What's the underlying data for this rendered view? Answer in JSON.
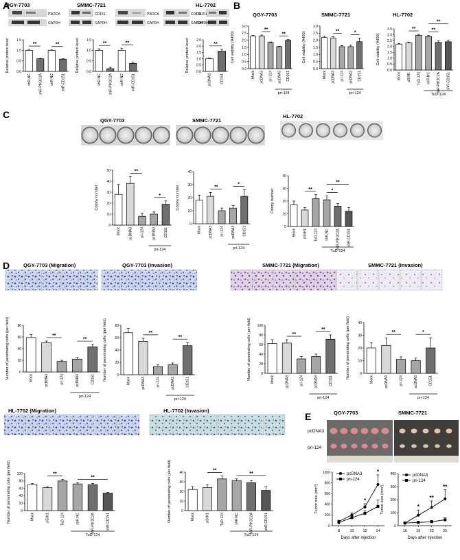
{
  "panel_labels": [
    "A",
    "B",
    "C",
    "D",
    "E"
  ],
  "blots": [
    {
      "title": "QGY-7703",
      "bands": [
        [
          "PIK3CA",
          "CD151"
        ],
        [
          "GAPDH",
          "GAPDH"
        ]
      ]
    },
    {
      "title": "SMMC-7721",
      "bands": [
        [
          "PIK3CA",
          "CD151"
        ],
        [
          "GAPDH",
          "GAPDH"
        ]
      ]
    },
    {
      "title": "HL-7702",
      "bands": [
        [
          "CD151"
        ],
        [
          "GAPDH"
        ]
      ]
    }
  ],
  "photos": {
    "c_titles": [
      "QGY-7703",
      "SMMC-7721",
      "HL-7702"
    ],
    "d_titles": [
      "QGY-7703 (Migration)",
      "QGY-7703 (Invasion)",
      "SMMC-7721 (Migration)",
      "SMMC-7721 (Invasion)",
      "HL-7702 (Migration)",
      "HL-7702 (Invasion)"
    ],
    "e_titles": [
      "QGY-7703",
      "SMMC-7721"
    ],
    "e_rows": [
      "pcDNA3",
      "pri-124"
    ]
  },
  "colors": {
    "white": "#ffffff",
    "light": "#d9d9d9",
    "mid": "#a6a6a6",
    "dark": "#6f6f6f",
    "darker": "#555555",
    "black": "#000000"
  },
  "chart_data": [
    {
      "id": "A1",
      "type": "bar",
      "title": "QGY-7703",
      "ylabel": "Relative protein level",
      "ylim": [
        0,
        1.5
      ],
      "yticks": [
        "0.0",
        "0.5",
        "1.0",
        "1.5"
      ],
      "categories": [
        "shR-NC",
        "shR-PIK3C2A",
        "shR-NC",
        "shR-CD151"
      ],
      "values": [
        1.0,
        0.6,
        1.0,
        0.58
      ],
      "err": [
        0.04,
        0.02,
        0.02,
        0.02
      ],
      "sig": [
        {
          "a": 0,
          "b": 1,
          "t": "**"
        },
        {
          "a": 2,
          "b": 3,
          "t": "**"
        }
      ]
    },
    {
      "id": "A2",
      "type": "bar",
      "title": "SMMC-7721",
      "ylabel": "Relative protein level",
      "ylim": [
        0,
        1.5
      ],
      "yticks": [
        "0.0",
        "0.5",
        "1.0",
        "1.5"
      ],
      "categories": [
        "shR-NC",
        "shR-PIK3C2A",
        "shR-NC",
        "shR-CD151"
      ],
      "values": [
        1.0,
        0.13,
        1.0,
        0.38
      ],
      "err": [
        0.07,
        0.06,
        0.1,
        0.07
      ],
      "sig": [
        {
          "a": 0,
          "b": 1,
          "t": "**"
        },
        {
          "a": 2,
          "b": 3,
          "t": "**"
        }
      ]
    },
    {
      "id": "A3",
      "type": "bar",
      "title": "HL-7702",
      "ylabel": "Relative protein level",
      "ylim": [
        0,
        2.5
      ],
      "yticks": [
        "0.0",
        "0.5",
        "1.0",
        "1.5",
        "2.0",
        "2.5"
      ],
      "categories": [
        "pcDNA3",
        "CD151"
      ],
      "values": [
        1.0,
        1.6
      ],
      "err": [
        0.05,
        0.15
      ],
      "sig": [
        {
          "a": 0,
          "b": 1,
          "t": "**"
        }
      ]
    },
    {
      "id": "B1",
      "type": "bar",
      "title": "QGY-7703",
      "ylabel": "Cell viability (A490)",
      "ylim": [
        0,
        3
      ],
      "yticks": [
        "0.0",
        "0.5",
        "1.0",
        "1.5",
        "2.0",
        "2.5",
        "3.0"
      ],
      "categories": [
        "Mock",
        "pcDNA3",
        "pri-124",
        "pcDNA3",
        "CD151"
      ],
      "values": [
        2.3,
        2.3,
        1.85,
        1.55,
        2.0
      ],
      "err": [
        0.05,
        0.07,
        0.03,
        0.03,
        0.05
      ],
      "sig": [
        {
          "a": 1,
          "b": 2,
          "t": "**"
        },
        {
          "a": 3,
          "b": 4,
          "t": "**"
        }
      ],
      "group": {
        "from": 3,
        "to": 4,
        "label": "pri-124"
      }
    },
    {
      "id": "B2",
      "type": "bar",
      "title": "SMMC-7721",
      "ylabel": "Cell viability (A490)",
      "ylim": [
        0,
        3
      ],
      "yticks": [
        "0.0",
        "0.5",
        "1.0",
        "1.5",
        "2.0",
        "2.5",
        "3.0"
      ],
      "categories": [
        "Mock",
        "pcDNA3",
        "pri-124",
        "pcDNA3",
        "CD151"
      ],
      "values": [
        2.2,
        2.15,
        1.55,
        1.55,
        1.9
      ],
      "err": [
        0.08,
        0.1,
        0.08,
        0.1,
        0.25
      ],
      "sig": [
        {
          "a": 1,
          "b": 2,
          "t": "**"
        },
        {
          "a": 3,
          "b": 4,
          "t": "*"
        }
      ],
      "group": {
        "from": 3,
        "to": 4,
        "label": "pri-124"
      }
    },
    {
      "id": "B3",
      "type": "bar",
      "title": "HL-7702",
      "ylabel": "Cell viability (A490)",
      "ylim": [
        0,
        3.5
      ],
      "yticks": [
        "0.0",
        "0.5",
        "1.0",
        "1.5",
        "2.0",
        "2.5",
        "3.0",
        "3.5"
      ],
      "categories": [
        "Mock",
        "pSilH1",
        "TuD-124",
        "shR-NC",
        "shR-PIK3C2A",
        "shR-CD151"
      ],
      "values": [
        2.2,
        2.3,
        2.95,
        2.85,
        2.35,
        2.4
      ],
      "err": [
        0.05,
        0.08,
        0.08,
        0.1,
        0.12,
        0.12
      ],
      "sig": [
        {
          "a": 1,
          "b": 2,
          "t": "**"
        },
        {
          "a": 3,
          "b": 4,
          "t": "**"
        },
        {
          "a": 3,
          "b": 5,
          "t": "**"
        }
      ],
      "group": {
        "from": 3,
        "to": 5,
        "label": "TuD-124"
      }
    },
    {
      "id": "C1",
      "type": "bar",
      "title": "",
      "ylabel": "Colony number",
      "ylim": [
        0,
        50
      ],
      "yticks": [
        "0",
        "10",
        "20",
        "30",
        "40",
        "50"
      ],
      "categories": [
        "Mock",
        "pcDNA3",
        "pri-124",
        "pcDNA3",
        "CD151"
      ],
      "values": [
        28,
        38,
        8,
        10,
        19
      ],
      "err": [
        9,
        6,
        3,
        2,
        3
      ],
      "sig": [
        {
          "a": 1,
          "b": 2,
          "t": "**"
        },
        {
          "a": 3,
          "b": 4,
          "t": "*"
        }
      ],
      "group": {
        "from": 3,
        "to": 4,
        "label": "pri-124"
      }
    },
    {
      "id": "C2",
      "type": "bar",
      "title": "",
      "ylabel": "Colony number",
      "ylim": [
        0,
        40
      ],
      "yticks": [
        "0",
        "10",
        "20",
        "30",
        "40"
      ],
      "categories": [
        "Mock",
        "pcDNA3",
        "pri-124",
        "pcDNA3",
        "CD151"
      ],
      "values": [
        18,
        21,
        10,
        12,
        21
      ],
      "err": [
        4,
        3,
        2,
        2,
        5
      ],
      "sig": [
        {
          "a": 1,
          "b": 2,
          "t": "**"
        },
        {
          "a": 3,
          "b": 4,
          "t": "*"
        }
      ],
      "group": {
        "from": 3,
        "to": 4,
        "label": "pri-124"
      }
    },
    {
      "id": "C3",
      "type": "bar",
      "title": "",
      "ylabel": "Colony number",
      "ylim": [
        0,
        40
      ],
      "yticks": [
        "0",
        "10",
        "20",
        "30",
        "40"
      ],
      "categories": [
        "Mock",
        "pSilH1",
        "TuD-124",
        "shR-NC",
        "shR-PIK3C2A",
        "shR-CD151"
      ],
      "values": [
        17,
        13,
        22,
        21,
        16,
        12
      ],
      "err": [
        3,
        2,
        3,
        3,
        2,
        3
      ],
      "sig": [
        {
          "a": 1,
          "b": 2,
          "t": "**"
        },
        {
          "a": 3,
          "b": 4,
          "t": "*"
        },
        {
          "a": 3,
          "b": 5,
          "t": "**"
        }
      ],
      "group": {
        "from": 3,
        "to": 5,
        "label": "TuD-124"
      }
    },
    {
      "id": "D1",
      "type": "bar",
      "title": "",
      "ylabel": "Number of penetrating cells (per field)",
      "ylim": [
        0,
        80
      ],
      "yticks": [
        "0",
        "20",
        "40",
        "60",
        "80"
      ],
      "categories": [
        "Mock",
        "pcDNA3",
        "pri-124",
        "pcDNA3",
        "CD151"
      ],
      "values": [
        59,
        50,
        18,
        22,
        43
      ],
      "err": [
        5,
        3,
        2,
        3,
        4
      ],
      "sig": [
        {
          "a": 1,
          "b": 2,
          "t": "**"
        },
        {
          "a": 3,
          "b": 4,
          "t": "**"
        }
      ],
      "group": {
        "from": 3,
        "to": 4,
        "label": "pri-124"
      }
    },
    {
      "id": "D2",
      "type": "bar",
      "title": "",
      "ylabel": "Number of penetrating cells (per field)",
      "ylim": [
        0,
        80
      ],
      "yticks": [
        "0",
        "20",
        "40",
        "60",
        "80"
      ],
      "categories": [
        "Mock",
        "pcDNA3",
        "pri-124",
        "pcDNA3",
        "CD151"
      ],
      "values": [
        68,
        54,
        13,
        16,
        47
      ],
      "err": [
        7,
        5,
        3,
        3,
        5
      ],
      "sig": [
        {
          "a": 1,
          "b": 2,
          "t": "**"
        },
        {
          "a": 3,
          "b": 4,
          "t": "**"
        }
      ],
      "group": {
        "from": 3,
        "to": 4,
        "label": "pri-124"
      }
    },
    {
      "id": "D3",
      "type": "bar",
      "title": "",
      "ylabel": "Number of penetrating cells (per field)",
      "ylim": [
        0,
        100
      ],
      "yticks": [
        "0",
        "20",
        "40",
        "60",
        "80",
        "100"
      ],
      "categories": [
        "Mock",
        "pcDNA3",
        "pri-124",
        "pcDNA3",
        "CD151"
      ],
      "values": [
        62,
        63,
        30,
        35,
        71
      ],
      "err": [
        8,
        7,
        5,
        5,
        9
      ],
      "sig": [
        {
          "a": 1,
          "b": 2,
          "t": "**"
        },
        {
          "a": 3,
          "b": 4,
          "t": "**"
        }
      ],
      "group": {
        "from": 3,
        "to": 4,
        "label": "pri-124"
      }
    },
    {
      "id": "D4",
      "type": "bar",
      "title": "",
      "ylabel": "Number of penetrating cells (per field)",
      "ylim": [
        0,
        40
      ],
      "yticks": [
        "0",
        "10",
        "20",
        "30",
        "40"
      ],
      "categories": [
        "Mock",
        "pcDNA3",
        "pri-124",
        "pcDNA3",
        "CD151"
      ],
      "values": [
        20,
        22,
        11,
        10,
        20
      ],
      "err": [
        4,
        6,
        2,
        2,
        8
      ],
      "sig": [
        {
          "a": 1,
          "b": 2,
          "t": "**"
        },
        {
          "a": 3,
          "b": 4,
          "t": "*"
        }
      ],
      "group": {
        "from": 3,
        "to": 4,
        "label": "pri-124"
      }
    },
    {
      "id": "D5",
      "type": "bar",
      "title": "",
      "ylabel": "Number of penetrating cells (per field)",
      "ylim": [
        0,
        100
      ],
      "yticks": [
        "0",
        "20",
        "40",
        "60",
        "80",
        "100"
      ],
      "categories": [
        "Mock",
        "pSilH1",
        "TuD-124",
        "shR-NC",
        "shR-PIK3C2A",
        "shR-CD151"
      ],
      "values": [
        70,
        62,
        80,
        72,
        70,
        47
      ],
      "err": [
        3,
        2,
        4,
        3,
        3,
        2
      ],
      "sig": [
        {
          "a": 1,
          "b": 2,
          "t": "**"
        },
        {
          "a": 3,
          "b": 5,
          "t": "**"
        }
      ],
      "group": {
        "from": 3,
        "to": 5,
        "label": "TuD-124"
      }
    },
    {
      "id": "D6",
      "type": "bar",
      "title": "",
      "ylabel": "Number of penetrating cells (per field)",
      "ylim": [
        0,
        40
      ],
      "yticks": [
        "0",
        "10",
        "20",
        "30",
        "40"
      ],
      "categories": [
        "Mock",
        "pSilH1",
        "TuD-124",
        "shR-NC",
        "shR-PIK3C2A",
        "shR-CD151"
      ],
      "values": [
        22,
        24,
        33,
        31,
        29,
        21
      ],
      "err": [
        3,
        3,
        3,
        2,
        2,
        4
      ],
      "sig": [
        {
          "a": 1,
          "b": 2,
          "t": "**"
        },
        {
          "a": 3,
          "b": 5,
          "t": "**"
        }
      ],
      "group": {
        "from": 3,
        "to": 5,
        "label": "TuD-124"
      }
    },
    {
      "id": "E1",
      "type": "line",
      "title": "",
      "xlabel": "Days after injection",
      "ylabel": "Tumor size (mm³)",
      "ylim": [
        0,
        1000
      ],
      "yticks": [
        "0",
        "200",
        "400",
        "600",
        "800",
        "1000"
      ],
      "x": [
        8,
        10,
        12,
        14
      ],
      "xticks": [
        "8",
        "10",
        "12",
        "14"
      ],
      "series": [
        {
          "name": "pcDNA3",
          "values": [
            80,
            200,
            350,
            770
          ],
          "err": [
            20,
            40,
            60,
            180
          ],
          "marker": "circle"
        },
        {
          "name": "pri-124",
          "values": [
            60,
            150,
            230,
            360
          ],
          "err": [
            15,
            30,
            50,
            120
          ],
          "marker": "square"
        }
      ],
      "sig": [
        {
          "i": 2,
          "t": "*"
        },
        {
          "i": 3,
          "t": "*"
        }
      ]
    },
    {
      "id": "E2",
      "type": "line",
      "title": "",
      "xlabel": "Days after injection",
      "ylabel": "Tumor size (mm³)",
      "ylim": [
        0,
        400
      ],
      "yticks": [
        "0",
        "100",
        "200",
        "300",
        "400"
      ],
      "x": [
        16,
        19,
        22,
        25
      ],
      "xticks": [
        "16",
        "19",
        "22",
        "25"
      ],
      "series": [
        {
          "name": "pcDNA3",
          "values": [
            20,
            80,
            140,
            205
          ],
          "err": [
            10,
            40,
            50,
            70
          ],
          "marker": "circle"
        },
        {
          "name": "pri-124",
          "values": [
            20,
            25,
            30,
            45
          ],
          "err": [
            5,
            10,
            10,
            15
          ],
          "marker": "square"
        }
      ],
      "sig": [
        {
          "i": 1,
          "t": "*"
        },
        {
          "i": 2,
          "t": "**"
        },
        {
          "i": 3,
          "t": "**"
        }
      ]
    }
  ]
}
